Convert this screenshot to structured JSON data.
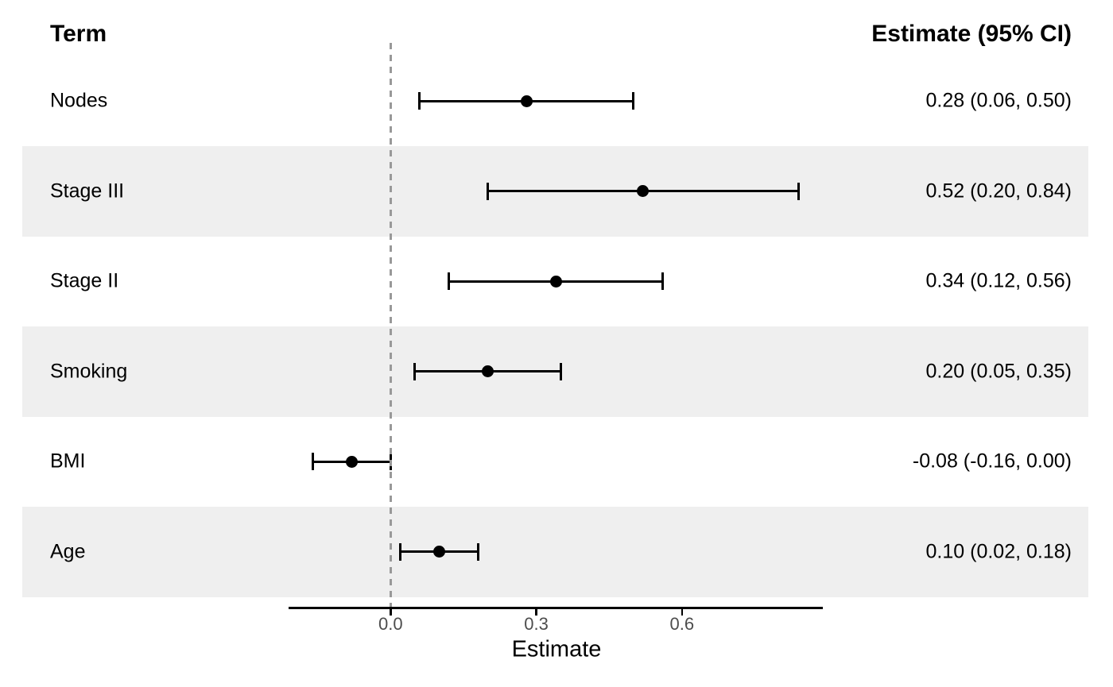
{
  "chart_data": {
    "type": "scatter",
    "subtype": "forest-plot",
    "title": "",
    "columns": {
      "term": "Term",
      "estimate": "Estimate (95% CI)"
    },
    "xlabel": "Estimate",
    "xlim": [
      -0.21,
      0.89
    ],
    "xticks": [
      0,
      0.3,
      0.6
    ],
    "xtick_labels": [
      "0.0",
      "0.3",
      "0.6"
    ],
    "reference_line_x": 0,
    "grid": false,
    "legend": false,
    "rows": [
      {
        "term": "Nodes",
        "estimate": 0.28,
        "ci_low": 0.06,
        "ci_high": 0.5,
        "label": "0.28 (0.06, 0.50)",
        "shaded": false
      },
      {
        "term": "Stage III",
        "estimate": 0.52,
        "ci_low": 0.2,
        "ci_high": 0.84,
        "label": "0.52 (0.20, 0.84)",
        "shaded": true
      },
      {
        "term": "Stage II",
        "estimate": 0.34,
        "ci_low": 0.12,
        "ci_high": 0.56,
        "label": "0.34 (0.12, 0.56)",
        "shaded": false
      },
      {
        "term": "Smoking",
        "estimate": 0.2,
        "ci_low": 0.05,
        "ci_high": 0.35,
        "label": "0.20 (0.05, 0.35)",
        "shaded": true
      },
      {
        "term": "BMI",
        "estimate": -0.08,
        "ci_low": -0.16,
        "ci_high": 0.0,
        "label": "-0.08 (-0.16, 0.00)",
        "shaded": false
      },
      {
        "term": "Age",
        "estimate": 0.1,
        "ci_low": 0.02,
        "ci_high": 0.18,
        "label": "0.10 (0.02, 0.18)",
        "shaded": true
      }
    ],
    "colors": {
      "stripe": "#efefef",
      "reference_line": "#999999",
      "point": "#000000",
      "error_bar": "#000000",
      "axis_line": "#000000",
      "tick_text": "#4d4d4d",
      "text": "#000000",
      "background": "#ffffff"
    }
  }
}
